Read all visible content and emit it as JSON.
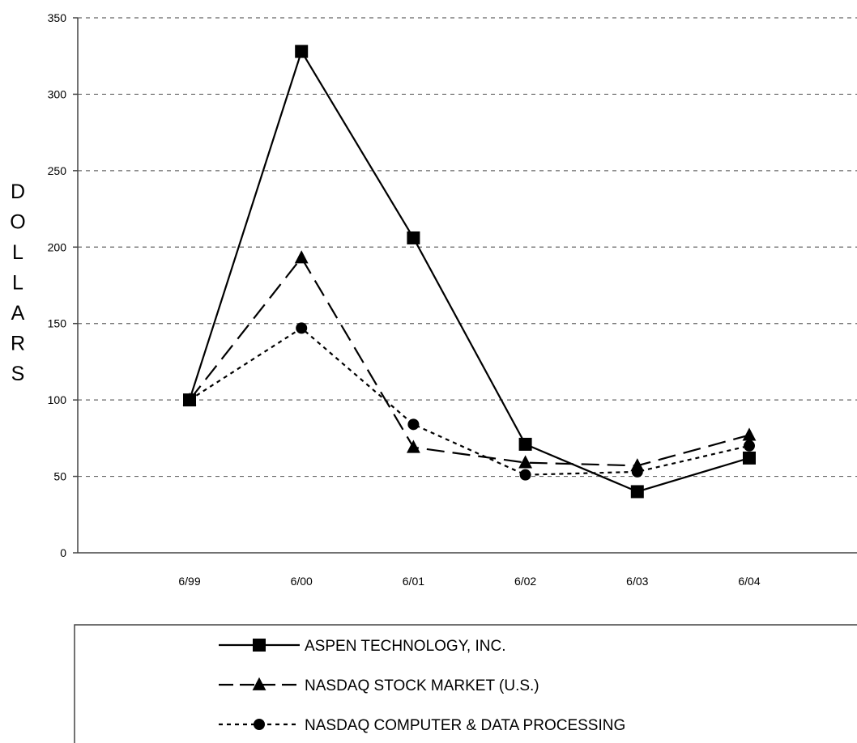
{
  "chart_data": {
    "type": "line",
    "categories": [
      "6/99",
      "6/00",
      "6/01",
      "6/02",
      "6/03",
      "6/04"
    ],
    "ylabel": "DOLLARS",
    "ylabel_letters": [
      "D",
      "O",
      "L",
      "L",
      "A",
      "R",
      "S"
    ],
    "ylim": [
      0,
      350
    ],
    "yticks": [
      0,
      50,
      100,
      150,
      200,
      250,
      300,
      350
    ],
    "grid": "horizontal dashed",
    "legend_position": "bottom",
    "series": [
      {
        "name": "ASPEN TECHNOLOGY, INC.",
        "marker": "square",
        "line": "solid",
        "values": [
          100,
          328,
          206,
          71,
          40,
          62
        ]
      },
      {
        "name": "NASDAQ STOCK MARKET (U.S.)",
        "marker": "triangle",
        "line": "long-dash",
        "values": [
          100,
          193,
          69,
          59,
          57,
          77
        ]
      },
      {
        "name": "NASDAQ COMPUTER & DATA PROCESSING",
        "marker": "circle",
        "line": "short-dash",
        "values": [
          100,
          147,
          84,
          51,
          53,
          70
        ]
      }
    ]
  }
}
